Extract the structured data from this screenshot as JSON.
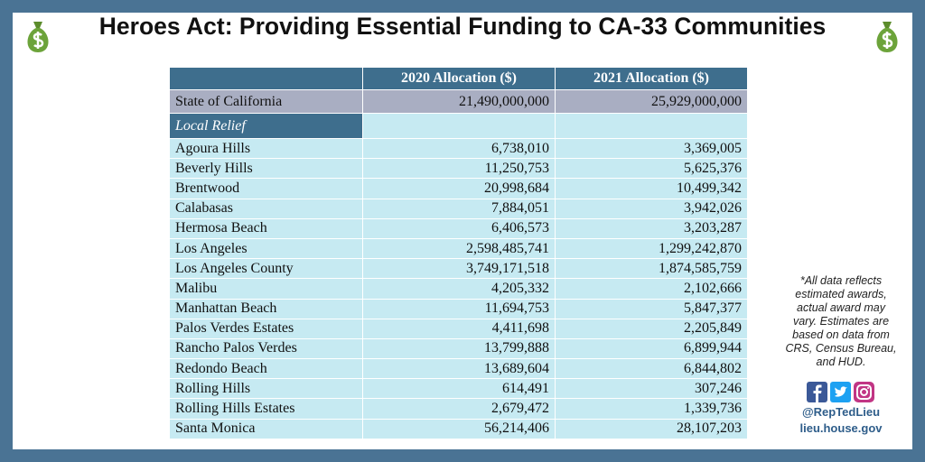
{
  "title": "Heroes Act: Providing Essential Funding to CA-33 Communities",
  "table": {
    "headers": [
      "2020 Allocation ($)",
      "2021 Allocation ($)"
    ],
    "state": [
      "State of California",
      "21,490,000,000",
      "25,929,000,000"
    ],
    "section": "Local Relief",
    "rows": [
      [
        "Agoura Hills",
        "6,738,010",
        "3,369,005"
      ],
      [
        "Beverly Hills",
        "11,250,753",
        "5,625,376"
      ],
      [
        "Brentwood",
        "20,998,684",
        "10,499,342"
      ],
      [
        "Calabasas",
        "7,884,051",
        "3,942,026"
      ],
      [
        "Hermosa Beach",
        "6,406,573",
        "3,203,287"
      ],
      [
        "Los Angeles",
        "2,598,485,741",
        "1,299,242,870"
      ],
      [
        "Los Angeles County",
        "3,749,171,518",
        "1,874,585,759"
      ],
      [
        "Malibu",
        "4,205,332",
        "2,102,666"
      ],
      [
        "Manhattan Beach",
        "11,694,753",
        "5,847,377"
      ],
      [
        "Palos Verdes Estates",
        "4,411,698",
        "2,205,849"
      ],
      [
        "Rancho Palos Verdes",
        "13,799,888",
        "6,899,944"
      ],
      [
        "Redondo Beach",
        "13,689,604",
        "6,844,802"
      ],
      [
        "Rolling Hills",
        "614,491",
        "307,246"
      ],
      [
        "Rolling Hills Estates",
        "2,679,472",
        "1,339,736"
      ],
      [
        "Santa Monica",
        "56,214,406",
        "28,107,203"
      ]
    ]
  },
  "note": "*All data reflects estimated awards, actual award may vary. Estimates are based on data from CRS, Census Bureau, and HUD.",
  "handle": "@RepTedLieu",
  "website": "lieu.house.gov"
}
